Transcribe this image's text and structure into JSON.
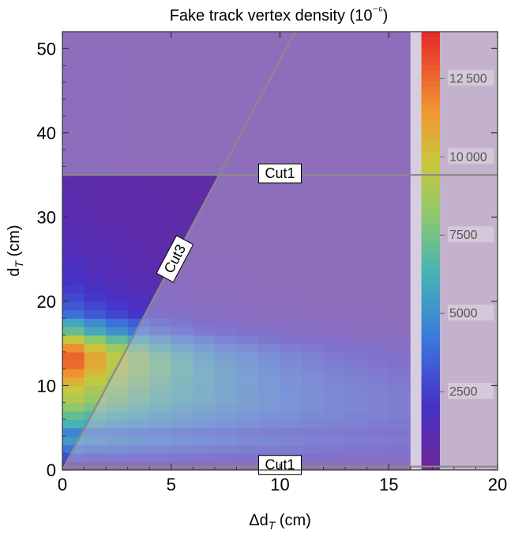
{
  "chart_data": {
    "type": "heatmap",
    "title": "Fake track vertex density (10⁻⁶)",
    "xlabel": "Δd_T (cm)",
    "ylabel": "d_T (cm)",
    "xlim": [
      0,
      20
    ],
    "ylim": [
      0,
      52
    ],
    "x_ticks": [
      0,
      5,
      10,
      15,
      20
    ],
    "y_ticks": [
      0,
      10,
      20,
      30,
      40,
      50
    ],
    "bin_width_x": 1,
    "bin_height_y": 1,
    "colorbar": {
      "range": [
        0,
        14000
      ],
      "ticks": [
        2500,
        5000,
        7500,
        10000,
        12500
      ],
      "tick_labels": [
        "2500",
        "5000",
        "7500",
        "10 000",
        "12 500"
      ],
      "colormap": "rainbow"
    },
    "density_model": {
      "description": "per d_T row: value at dx=0 and decay length along Δd_T",
      "rows": [
        {
          "y0": 0,
          "y1": 1,
          "value": 500,
          "decay": 20
        },
        {
          "y0": 1,
          "y1": 2,
          "value": 3000,
          "decay": 20
        },
        {
          "y0": 2,
          "y1": 3,
          "value": 4200,
          "decay": 18
        },
        {
          "y0": 3,
          "y1": 4,
          "value": 5500,
          "decay": 16
        },
        {
          "y0": 4,
          "y1": 5,
          "value": 4800,
          "decay": 16
        },
        {
          "y0": 5,
          "y1": 6,
          "value": 6500,
          "decay": 14
        },
        {
          "y0": 6,
          "y1": 7,
          "value": 7400,
          "decay": 13
        },
        {
          "y0": 7,
          "y1": 8,
          "value": 8600,
          "decay": 12
        },
        {
          "y0": 8,
          "y1": 9,
          "value": 9600,
          "decay": 11
        },
        {
          "y0": 9,
          "y1": 10,
          "value": 10200,
          "decay": 10
        },
        {
          "y0": 10,
          "y1": 11,
          "value": 11200,
          "decay": 9
        },
        {
          "y0": 11,
          "y1": 12,
          "value": 12300,
          "decay": 8
        },
        {
          "y0": 12,
          "y1": 13,
          "value": 13300,
          "decay": 7
        },
        {
          "y0": 13,
          "y1": 14,
          "value": 13600,
          "decay": 6.5
        },
        {
          "y0": 14,
          "y1": 15,
          "value": 12600,
          "decay": 6
        },
        {
          "y0": 15,
          "y1": 16,
          "value": 10500,
          "decay": 5.5
        },
        {
          "y0": 16,
          "y1": 17,
          "value": 7800,
          "decay": 5
        },
        {
          "y0": 17,
          "y1": 18,
          "value": 6400,
          "decay": 4.5
        },
        {
          "y0": 18,
          "y1": 19,
          "value": 4400,
          "decay": 4
        },
        {
          "y0": 19,
          "y1": 20,
          "value": 3600,
          "decay": 4
        },
        {
          "y0": 20,
          "y1": 21,
          "value": 3100,
          "decay": 3.5
        },
        {
          "y0": 21,
          "y1": 22,
          "value": 2600,
          "decay": 3.5
        },
        {
          "y0": 22,
          "y1": 23,
          "value": 2300,
          "decay": 3
        },
        {
          "y0": 23,
          "y1": 24,
          "value": 2100,
          "decay": 3
        },
        {
          "y0": 24,
          "y1": 25,
          "value": 1900,
          "decay": 3
        },
        {
          "y0": 25,
          "y1": 26,
          "value": 1700,
          "decay": 3
        },
        {
          "y0": 26,
          "y1": 27,
          "value": 1500,
          "decay": 3
        },
        {
          "y0": 27,
          "y1": 28,
          "value": 1400,
          "decay": 3
        },
        {
          "y0": 28,
          "y1": 29,
          "value": 1300,
          "decay": 3
        },
        {
          "y0": 29,
          "y1": 30,
          "value": 1200,
          "decay": 3
        },
        {
          "y0": 30,
          "y1": 32,
          "value": 1100,
          "decay": 3
        },
        {
          "y0": 32,
          "y1": 35,
          "value": 1000,
          "decay": 3
        },
        {
          "y0": 35,
          "y1": 52,
          "value": 900,
          "decay": 3
        }
      ],
      "floor": 700
    },
    "cuts": [
      {
        "name": "Cut1",
        "label": "Cut1",
        "type": "horizontal",
        "y": 35,
        "label_x": 10
      },
      {
        "name": "Cut1",
        "label": "Cut1",
        "type": "horizontal",
        "y": 0.4,
        "label_x": 10
      },
      {
        "name": "Cut3",
        "label": "Cut3",
        "type": "line",
        "x1": 0,
        "y1": 0,
        "x2": 10.7,
        "y2": 52,
        "label_x": 5.2,
        "label_y": 25
      }
    ],
    "excluded_regions": [
      {
        "description": "above Cut1",
        "y_min": 35
      },
      {
        "description": "below Cut1",
        "y_max": 0.4
      },
      {
        "description": "right of Cut3 line",
        "side": "below-line"
      },
      {
        "description": "right of Δd_T=16",
        "x_min": 16
      }
    ]
  }
}
